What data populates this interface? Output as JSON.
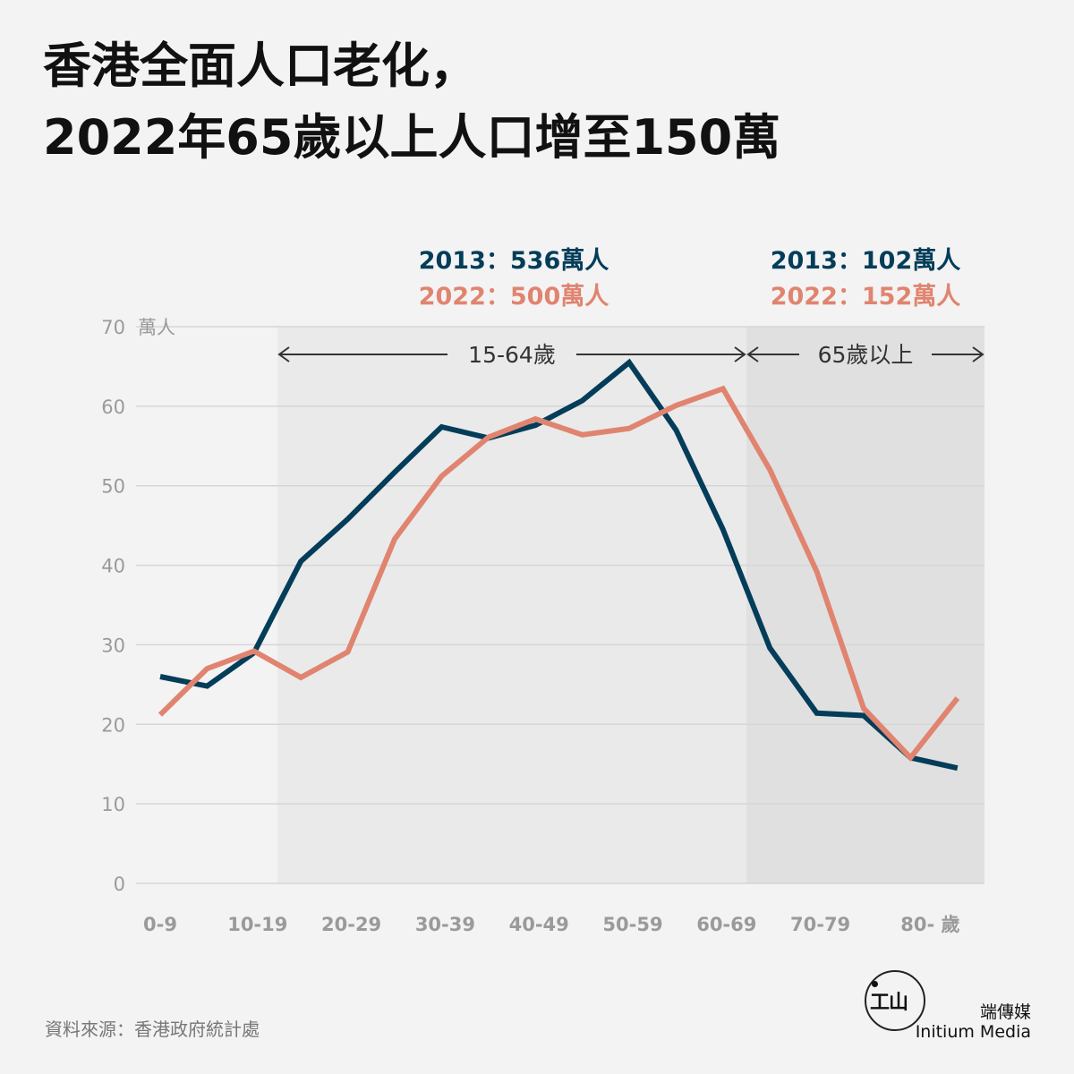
{
  "title_line1": "香港全面人口老化，",
  "title_line2": "2022年65歲以上人口增至150萬",
  "source": "資料來源：香港政府統計處",
  "brand": {
    "cn": "端傳媒",
    "en": "Initium Media",
    "mark": "工山"
  },
  "colors": {
    "s2013": "#033d59",
    "s2022": "#e08470",
    "shade_working": "#eaeaea",
    "shade_elderly": "#e0e0e0",
    "grid": "#d6d6d6",
    "axis_text": "#9a9a9a",
    "background": "#f3f3f3"
  },
  "chart_data": {
    "type": "line",
    "ylabel": "萬人",
    "xunit": "歲",
    "ylim": [
      0,
      70
    ],
    "yticks": [
      0,
      10,
      20,
      30,
      40,
      50,
      60,
      70
    ],
    "x": [
      "0-4",
      "5-9",
      "10-14",
      "15-19",
      "20-24",
      "25-29",
      "30-34",
      "35-39",
      "40-44",
      "45-49",
      "50-54",
      "55-59",
      "60-64",
      "65-69",
      "70-74",
      "75-79",
      "80-84",
      "85-"
    ],
    "xtick_labels": [
      {
        "index": 0,
        "label": "0-9"
      },
      {
        "index": 2,
        "label": "10-19"
      },
      {
        "index": 4,
        "label": "20-29"
      },
      {
        "index": 6,
        "label": "30-39"
      },
      {
        "index": 8,
        "label": "40-49"
      },
      {
        "index": 10,
        "label": "50-59"
      },
      {
        "index": 12,
        "label": "60-69"
      },
      {
        "index": 14,
        "label": "70-79"
      },
      {
        "index": 16,
        "label": "80-"
      }
    ],
    "series": [
      {
        "name": "2013",
        "values": [
          26.0,
          24.8,
          29.0,
          40.5,
          45.8,
          51.7,
          57.4,
          56.0,
          57.6,
          60.7,
          65.5,
          57.0,
          44.5,
          29.6,
          21.4,
          21.1,
          15.8,
          14.5
        ]
      },
      {
        "name": "2022",
        "values": [
          21.2,
          27.0,
          29.2,
          25.9,
          29.1,
          43.3,
          51.2,
          56.1,
          58.4,
          56.4,
          57.2,
          60.1,
          62.2,
          52.0,
          39.2,
          22.0,
          15.8,
          23.3
        ]
      }
    ],
    "regions": [
      {
        "label": "15-64歲",
        "from_index": 3,
        "to_index": 12
      },
      {
        "label": "65歲以上",
        "from_index": 13,
        "to_index": 17
      }
    ],
    "annotations": {
      "working": {
        "2013": "2013：536萬人",
        "2022": "2022：500萬人"
      },
      "elderly": {
        "2013": "2013：102萬人",
        "2022": "2022：152萬人"
      }
    },
    "grid": true
  }
}
